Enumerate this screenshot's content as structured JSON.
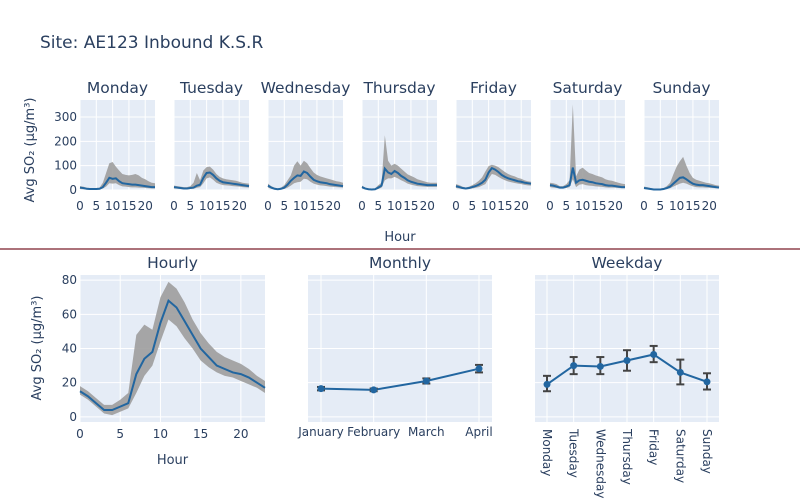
{
  "page": {
    "title": "Site: AE123 Inbound K.S.R"
  },
  "colors": {
    "line": "#2266a0",
    "band": "#9d9d9d",
    "panel_bg": "#e5ecf6",
    "grid": "#ffffff",
    "text": "#2a3f5f",
    "separator": "#7a1f2b"
  },
  "chart_data": [
    {
      "type": "line",
      "id": "day-hourly-facets",
      "ylabel": "Avg SO₂ (µg/m³)",
      "xlabel": "Hour",
      "ylim": [
        0,
        370
      ],
      "xlim": [
        0,
        23
      ],
      "yticks": [
        0,
        100,
        200,
        300
      ],
      "xticks": [
        0,
        5,
        10,
        15,
        20
      ],
      "facets": [
        {
          "name": "Monday",
          "mean": [
            10,
            8,
            5,
            4,
            4,
            4,
            5,
            12,
            30,
            50,
            46,
            48,
            36,
            28,
            26,
            24,
            22,
            22,
            20,
            18,
            16,
            14,
            12,
            12
          ],
          "lower": [
            4,
            3,
            2,
            1,
            1,
            1,
            2,
            6,
            14,
            28,
            26,
            28,
            20,
            15,
            14,
            12,
            11,
            11,
            10,
            9,
            8,
            7,
            6,
            6
          ],
          "upper": [
            16,
            14,
            10,
            8,
            8,
            8,
            10,
            30,
            70,
            110,
            115,
            96,
            80,
            66,
            62,
            60,
            62,
            66,
            60,
            50,
            44,
            36,
            30,
            28
          ]
        },
        {
          "name": "Tuesday",
          "mean": [
            12,
            10,
            8,
            6,
            6,
            8,
            10,
            18,
            22,
            50,
            70,
            72,
            62,
            48,
            38,
            32,
            30,
            28,
            26,
            24,
            22,
            20,
            18,
            16
          ],
          "lower": [
            6,
            5,
            4,
            3,
            3,
            4,
            5,
            9,
            12,
            28,
            48,
            52,
            42,
            30,
            24,
            20,
            19,
            18,
            16,
            15,
            14,
            12,
            11,
            10
          ],
          "upper": [
            18,
            16,
            14,
            12,
            12,
            16,
            30,
            70,
            40,
            80,
            94,
            96,
            84,
            66,
            54,
            48,
            44,
            42,
            40,
            38,
            34,
            30,
            28,
            26
          ]
        },
        {
          "name": "Wednesday",
          "mean": [
            18,
            10,
            5,
            3,
            5,
            10,
            22,
            38,
            50,
            60,
            58,
            76,
            70,
            55,
            42,
            36,
            32,
            30,
            28,
            24,
            22,
            20,
            18,
            16
          ],
          "lower": [
            10,
            5,
            2,
            1,
            2,
            4,
            10,
            18,
            28,
            32,
            34,
            46,
            44,
            34,
            26,
            22,
            19,
            18,
            16,
            14,
            13,
            12,
            11,
            10
          ],
          "upper": [
            26,
            16,
            10,
            6,
            10,
            20,
            40,
            60,
            100,
            118,
            100,
            120,
            110,
            90,
            72,
            62,
            56,
            52,
            48,
            44,
            40,
            36,
            34,
            30
          ]
        },
        {
          "name": "Thursday",
          "mean": [
            12,
            6,
            3,
            2,
            3,
            10,
            18,
            88,
            72,
            66,
            78,
            70,
            58,
            50,
            40,
            34,
            30,
            26,
            24,
            22,
            20,
            20,
            20,
            20
          ],
          "lower": [
            6,
            3,
            1,
            1,
            1,
            4,
            10,
            40,
            48,
            48,
            54,
            48,
            40,
            34,
            26,
            22,
            19,
            16,
            15,
            14,
            13,
            13,
            13,
            13
          ],
          "upper": [
            18,
            10,
            6,
            4,
            6,
            20,
            30,
            225,
            120,
            100,
            108,
            100,
            88,
            76,
            64,
            58,
            52,
            44,
            40,
            36,
            32,
            30,
            30,
            30
          ]
        },
        {
          "name": "Friday",
          "mean": [
            16,
            12,
            8,
            6,
            8,
            12,
            16,
            22,
            30,
            42,
            72,
            90,
            84,
            74,
            62,
            54,
            48,
            44,
            40,
            36,
            34,
            30,
            28,
            26
          ],
          "lower": [
            8,
            6,
            4,
            3,
            4,
            6,
            9,
            12,
            18,
            24,
            46,
            66,
            62,
            54,
            46,
            40,
            35,
            32,
            29,
            26,
            24,
            21,
            19,
            18
          ],
          "upper": [
            24,
            20,
            14,
            10,
            14,
            20,
            28,
            38,
            52,
            76,
            98,
            104,
            100,
            94,
            84,
            74,
            66,
            60,
            56,
            50,
            46,
            40,
            36,
            34
          ]
        },
        {
          "name": "Saturday",
          "mean": [
            20,
            18,
            14,
            10,
            10,
            14,
            20,
            92,
            30,
            40,
            42,
            38,
            34,
            32,
            28,
            26,
            24,
            20,
            18,
            18,
            16,
            14,
            12,
            12
          ],
          "lower": [
            12,
            10,
            8,
            6,
            6,
            8,
            12,
            44,
            12,
            22,
            24,
            20,
            18,
            17,
            15,
            14,
            13,
            11,
            10,
            10,
            9,
            8,
            7,
            7
          ],
          "upper": [
            30,
            28,
            24,
            16,
            16,
            24,
            40,
            352,
            56,
            84,
            92,
            80,
            70,
            66,
            60,
            56,
            52,
            44,
            40,
            38,
            34,
            30,
            26,
            24
          ]
        },
        {
          "name": "Sunday",
          "mean": [
            8,
            6,
            4,
            2,
            2,
            2,
            4,
            8,
            14,
            26,
            38,
            50,
            52,
            44,
            34,
            26,
            22,
            20,
            20,
            18,
            16,
            14,
            12,
            10
          ],
          "lower": [
            4,
            3,
            2,
            1,
            1,
            1,
            2,
            4,
            7,
            14,
            20,
            26,
            30,
            26,
            20,
            15,
            12,
            11,
            11,
            10,
            9,
            8,
            7,
            6
          ],
          "upper": [
            14,
            12,
            8,
            5,
            5,
            5,
            8,
            16,
            30,
            64,
            96,
            118,
            136,
            100,
            70,
            50,
            42,
            38,
            34,
            30,
            28,
            24,
            20,
            18
          ]
        }
      ]
    },
    {
      "type": "line",
      "id": "hourly",
      "title": "Hourly",
      "xlabel": "Hour",
      "ylabel": "Avg SO₂ (µg/m³)",
      "ylim": [
        -3,
        83
      ],
      "xlim": [
        0,
        23
      ],
      "yticks": [
        0,
        20,
        40,
        60,
        80
      ],
      "xticks": [
        0,
        5,
        10,
        15,
        20
      ],
      "x": [
        0,
        1,
        2,
        3,
        4,
        5,
        6,
        7,
        8,
        9,
        10,
        11,
        12,
        13,
        14,
        15,
        16,
        17,
        18,
        19,
        20,
        21,
        22,
        23
      ],
      "mean": [
        15,
        12,
        8,
        4,
        4,
        6,
        8,
        25,
        34,
        38,
        55,
        68,
        64,
        56,
        48,
        40,
        35,
        30,
        28,
        26,
        25,
        23,
        20,
        17
      ],
      "lower": [
        13,
        10,
        6,
        2,
        1,
        3,
        5,
        14,
        24,
        30,
        44,
        57,
        53,
        46,
        40,
        33,
        29,
        26,
        24,
        23,
        21,
        19,
        17,
        14
      ],
      "upper": [
        18,
        15,
        11,
        7,
        7,
        10,
        14,
        48,
        54,
        51,
        70,
        79,
        75,
        67,
        57,
        49,
        43,
        38,
        35,
        33,
        31,
        28,
        24,
        21
      ]
    },
    {
      "type": "line",
      "id": "monthly",
      "title": "Monthly",
      "categories": [
        "January",
        "February",
        "March",
        "April"
      ],
      "values": [
        16.5,
        15.8,
        21,
        28.2
      ],
      "err_low": [
        15.5,
        15.0,
        19.5,
        26.0
      ],
      "err_high": [
        17.5,
        16.6,
        22.5,
        30.4
      ],
      "ylim": [
        -3,
        83
      ]
    },
    {
      "type": "line",
      "id": "weekday",
      "title": "Weekday",
      "categories": [
        "Monday",
        "Tuesday",
        "Wednesday",
        "Thursday",
        "Friday",
        "Saturday",
        "Sunday"
      ],
      "values": [
        19,
        30,
        29.5,
        33,
        36.5,
        26,
        20.5
      ],
      "err_low": [
        15,
        25,
        25,
        27,
        32,
        19,
        16
      ],
      "err_high": [
        24,
        35,
        35,
        39,
        41.5,
        33.5,
        25.5
      ],
      "ylim": [
        -3,
        83
      ]
    }
  ]
}
